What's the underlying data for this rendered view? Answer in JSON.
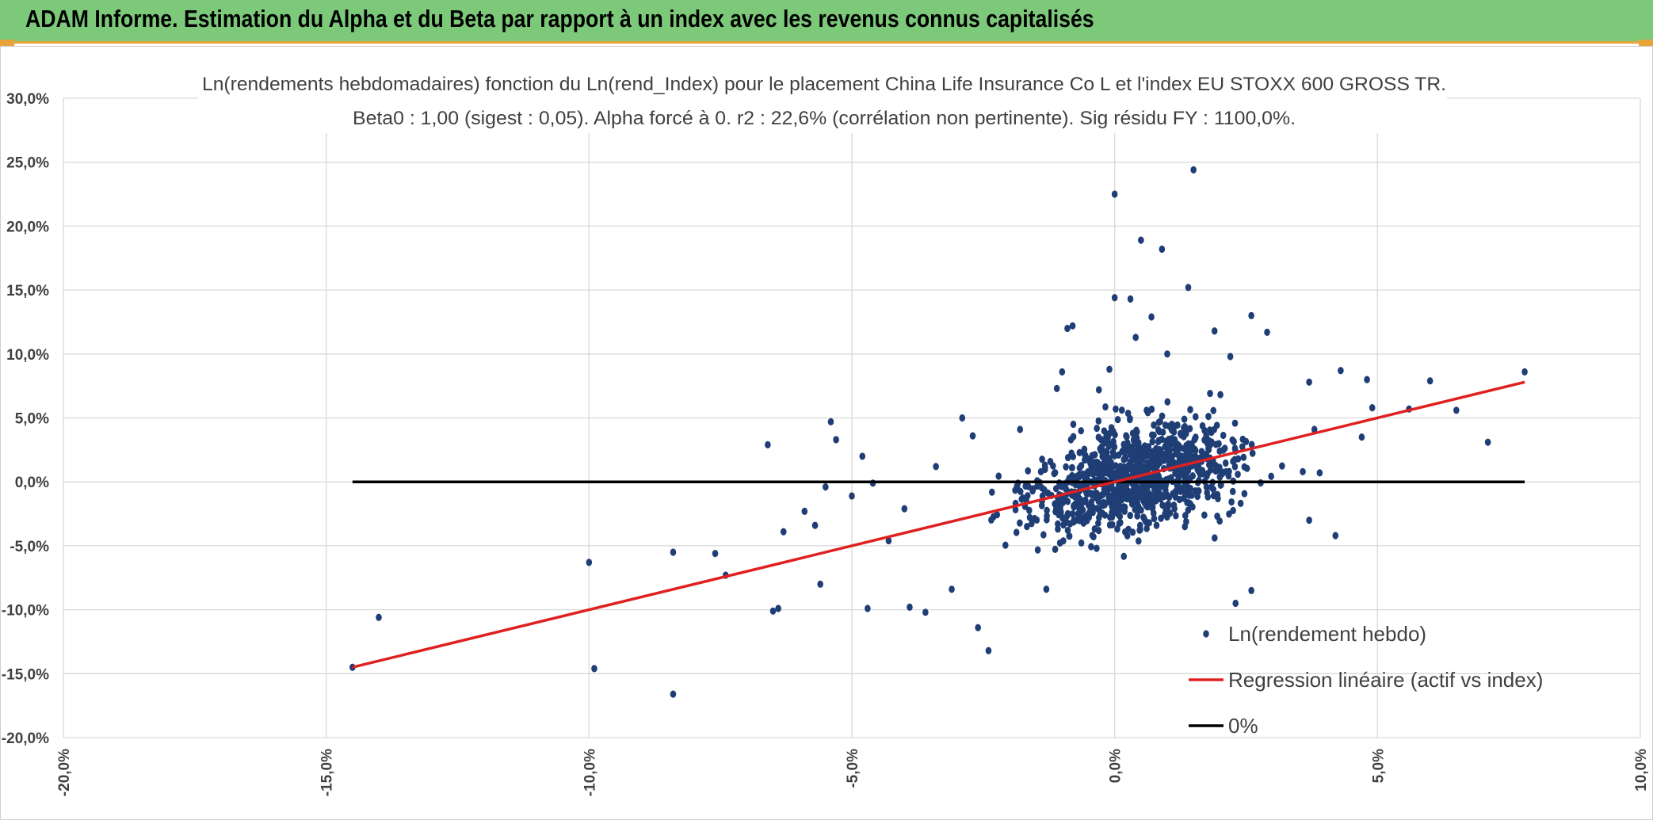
{
  "header": {
    "title": "ADAM Informe. Estimation du Alpha et du Beta par rapport à un index avec les revenus connus capitalisés"
  },
  "colors": {
    "banner": "#7dc97a",
    "banner_border": "#e8a33b",
    "points": "#1f3e75",
    "regression": "#e02020",
    "zero_line": "#000000",
    "grid": "#d9d9d9"
  },
  "chart_data": {
    "type": "scatter",
    "title": "Ln(rendements hebdomadaires) fonction du Ln(rend_Index) pour le placement China Life Insurance Co L et l'index EU STOXX 600 GROSS TR.",
    "subtitle": "Beta0 : 1,00 (sigest : 0,05). Alpha forcé à 0. r2 : 22,6% (corrélation non pertinente). Sig résidu FY : 1100,0%.",
    "xlabel": "",
    "ylabel": "",
    "xlim": [
      -20,
      10
    ],
    "ylim": [
      -20,
      30
    ],
    "x_ticks": [
      "-20,0%",
      "-15,0%",
      "-10,0%",
      "-5,0%",
      "0,0%",
      "5,0%",
      "10,0%"
    ],
    "y_ticks": [
      "30,0%",
      "25,0%",
      "20,0%",
      "15,0%",
      "10,0%",
      "5,0%",
      "0,0%",
      "-5,0%",
      "-10,0%",
      "-15,0%",
      "-20,0%"
    ],
    "grid": true,
    "legend_position": "bottom-right",
    "legend": [
      "Ln(rendement hebdo)",
      "Regression linéaire (actif vs index)",
      "0%"
    ],
    "regression": {
      "slope": 1.0,
      "intercept": 0.0,
      "x_range": [
        -14.5,
        7.8
      ]
    },
    "zero_line": {
      "y": 0.0,
      "x_range": [
        -14.5,
        7.8
      ]
    },
    "series_named_points": [
      [
        -14.5,
        -14.5
      ],
      [
        -14.0,
        -10.6
      ],
      [
        -10.0,
        -6.3
      ],
      [
        -9.9,
        -14.6
      ],
      [
        -8.4,
        -5.5
      ],
      [
        -8.4,
        -16.6
      ],
      [
        -7.6,
        -5.6
      ],
      [
        -7.4,
        -7.3
      ],
      [
        -6.6,
        2.9
      ],
      [
        -6.5,
        -10.1
      ],
      [
        -6.4,
        -9.9
      ],
      [
        -6.3,
        -3.9
      ],
      [
        -5.9,
        -2.3
      ],
      [
        -5.7,
        -3.4
      ],
      [
        -5.6,
        -8.0
      ],
      [
        -5.5,
        -0.4
      ],
      [
        -5.4,
        4.7
      ],
      [
        -5.3,
        3.3
      ],
      [
        -5.0,
        -1.1
      ],
      [
        -4.8,
        2.0
      ],
      [
        -4.7,
        -9.9
      ],
      [
        -4.6,
        -0.1
      ],
      [
        -4.3,
        -4.6
      ],
      [
        -4.0,
        -2.1
      ],
      [
        -3.9,
        -9.8
      ],
      [
        -3.6,
        -10.2
      ],
      [
        -3.4,
        1.2
      ],
      [
        -3.1,
        -8.4
      ],
      [
        -2.9,
        5.0
      ],
      [
        -2.6,
        -11.4
      ],
      [
        -2.4,
        -13.2
      ],
      [
        -2.7,
        3.6
      ],
      [
        -1.8,
        4.1
      ],
      [
        -1.0,
        8.6
      ],
      [
        -1.1,
        7.3
      ],
      [
        -0.9,
        12.0
      ],
      [
        -0.8,
        12.2
      ],
      [
        -0.3,
        7.2
      ],
      [
        -0.1,
        8.8
      ],
      [
        0.0,
        22.5
      ],
      [
        0.0,
        14.4
      ],
      [
        0.3,
        14.3
      ],
      [
        0.4,
        11.3
      ],
      [
        0.5,
        18.9
      ],
      [
        0.7,
        12.9
      ],
      [
        0.9,
        18.2
      ],
      [
        1.0,
        10.0
      ],
      [
        1.4,
        15.2
      ],
      [
        1.5,
        24.4
      ],
      [
        1.9,
        11.8
      ],
      [
        2.2,
        9.8
      ],
      [
        2.6,
        13.0
      ],
      [
        2.9,
        11.7
      ],
      [
        3.7,
        7.8
      ],
      [
        3.8,
        4.1
      ],
      [
        3.9,
        0.7
      ],
      [
        4.3,
        8.7
      ],
      [
        4.2,
        -4.2
      ],
      [
        4.7,
        3.5
      ],
      [
        4.8,
        8.0
      ],
      [
        4.9,
        5.8
      ],
      [
        5.6,
        5.7
      ],
      [
        6.0,
        7.9
      ],
      [
        6.5,
        5.6
      ],
      [
        7.1,
        3.1
      ],
      [
        7.8,
        8.6
      ],
      [
        3.7,
        -3.0
      ],
      [
        2.3,
        -9.5
      ],
      [
        2.6,
        -8.5
      ],
      [
        -1.3,
        -8.4
      ]
    ],
    "cloud": {
      "count": 980,
      "center": [
        0.4,
        0.4
      ],
      "spread_x": 1.4,
      "noise": 3.2,
      "seed": 12345
    }
  }
}
